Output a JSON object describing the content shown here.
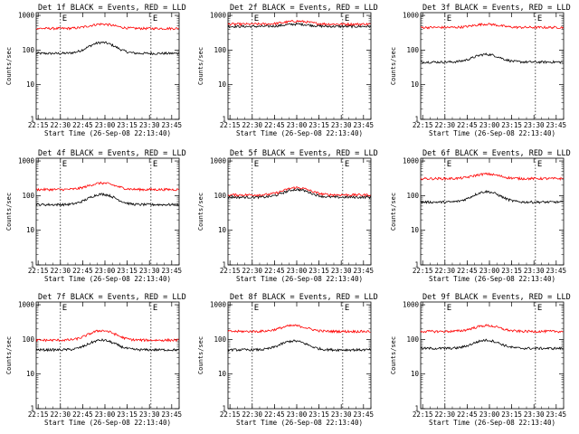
{
  "x_axis_label": "Start Time (26-Sep-08 22:13:40)",
  "y_axis_label": "Counts/sec",
  "x_ticks": [
    "22:15",
    "22:30",
    "22:45",
    "23:00",
    "23:15",
    "23:30",
    "23:45"
  ],
  "y_ticks": [
    "1",
    "10",
    "100",
    "1000"
  ],
  "event_marker": "E",
  "colors": {
    "events": "#000000",
    "lld": "#ff0000"
  },
  "chart_data": [
    {
      "type": "line",
      "title": "Det 1f BLACK = Events, RED = LLD",
      "ylim": [
        1,
        1200
      ],
      "log_y": true,
      "series": [
        {
          "name": "Events",
          "color": "#000000",
          "base": 80,
          "peak": 165,
          "peak_time": "22:58"
        },
        {
          "name": "LLD",
          "color": "#ff0000",
          "base": 420,
          "peak": 560,
          "peak_time": "22:58"
        }
      ]
    },
    {
      "type": "line",
      "title": "Det 2f BLACK = Events, RED = LLD",
      "ylim": [
        1,
        1200
      ],
      "log_y": true,
      "series": [
        {
          "name": "Events",
          "color": "#000000",
          "base": 480,
          "peak": 560,
          "peak_time": "23:00"
        },
        {
          "name": "LLD",
          "color": "#ff0000",
          "base": 560,
          "peak": 680,
          "peak_time": "23:00"
        }
      ]
    },
    {
      "type": "line",
      "title": "Det 3f BLACK = Events, RED = LLD",
      "ylim": [
        1,
        1200
      ],
      "log_y": true,
      "series": [
        {
          "name": "Events",
          "color": "#000000",
          "base": 45,
          "peak": 75,
          "peak_time": "22:58"
        },
        {
          "name": "LLD",
          "color": "#ff0000",
          "base": 450,
          "peak": 560,
          "peak_time": "22:58"
        }
      ]
    },
    {
      "type": "line",
      "title": "Det 4f BLACK = Events, RED = LLD",
      "ylim": [
        1,
        1200
      ],
      "log_y": true,
      "series": [
        {
          "name": "Events",
          "color": "#000000",
          "base": 55,
          "peak": 110,
          "peak_time": "22:58"
        },
        {
          "name": "LLD",
          "color": "#ff0000",
          "base": 150,
          "peak": 230,
          "peak_time": "22:58"
        }
      ]
    },
    {
      "type": "line",
      "title": "Det 5f BLACK = Events, RED = LLD",
      "ylim": [
        1,
        1200
      ],
      "log_y": true,
      "series": [
        {
          "name": "Events",
          "color": "#000000",
          "base": 90,
          "peak": 150,
          "peak_time": "23:00"
        },
        {
          "name": "LLD",
          "color": "#ff0000",
          "base": 105,
          "peak": 170,
          "peak_time": "23:00"
        }
      ]
    },
    {
      "type": "line",
      "title": "Det 6f BLACK = Events, RED = LLD",
      "ylim": [
        1,
        1200
      ],
      "log_y": true,
      "series": [
        {
          "name": "Events",
          "color": "#000000",
          "base": 65,
          "peak": 130,
          "peak_time": "22:58"
        },
        {
          "name": "LLD",
          "color": "#ff0000",
          "base": 310,
          "peak": 420,
          "peak_time": "22:58"
        }
      ]
    },
    {
      "type": "line",
      "title": "Det 7f BLACK = Events, RED = LLD",
      "ylim": [
        1,
        1200
      ],
      "log_y": true,
      "series": [
        {
          "name": "Events",
          "color": "#000000",
          "base": 50,
          "peak": 95,
          "peak_time": "22:58"
        },
        {
          "name": "LLD",
          "color": "#ff0000",
          "base": 95,
          "peak": 180,
          "peak_time": "22:58"
        }
      ]
    },
    {
      "type": "line",
      "title": "Det 8f BLACK = Events, RED = LLD",
      "ylim": [
        1,
        1200
      ],
      "log_y": true,
      "series": [
        {
          "name": "Events",
          "color": "#000000",
          "base": 50,
          "peak": 90,
          "peak_time": "22:58"
        },
        {
          "name": "LLD",
          "color": "#ff0000",
          "base": 170,
          "peak": 250,
          "peak_time": "22:58"
        }
      ]
    },
    {
      "type": "line",
      "title": "Det 9f BLACK = Events, RED = LLD",
      "ylim": [
        1,
        1200
      ],
      "log_y": true,
      "series": [
        {
          "name": "Events",
          "color": "#000000",
          "base": 55,
          "peak": 95,
          "peak_time": "22:58"
        },
        {
          "name": "LLD",
          "color": "#ff0000",
          "base": 170,
          "peak": 250,
          "peak_time": "22:58"
        }
      ]
    }
  ]
}
